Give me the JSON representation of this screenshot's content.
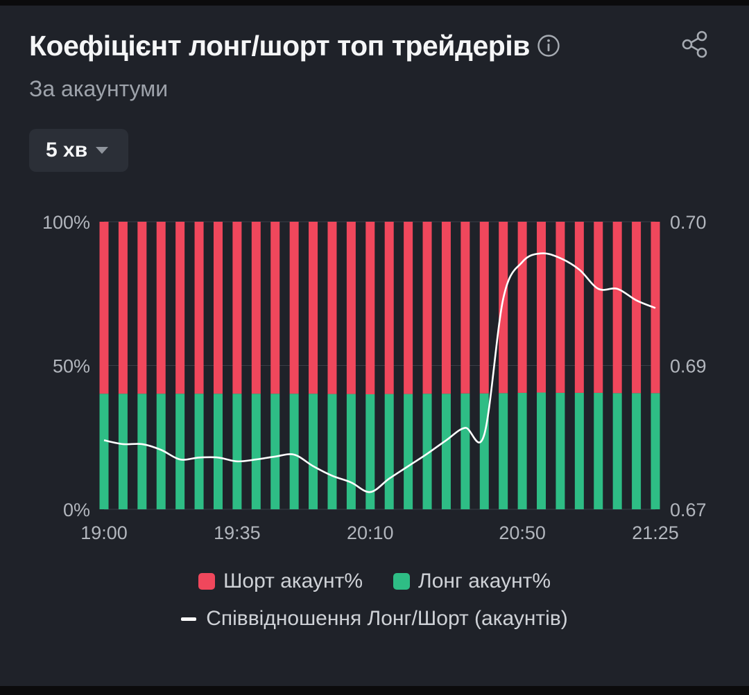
{
  "header": {
    "title": "Коефіцієнт лонг/шорт топ трейдерів",
    "subtitle": "За акаунтуми",
    "info_icon": "info-circle-icon",
    "share_icon": "share-icon"
  },
  "interval": {
    "label": "5 хв",
    "caret_icon": "caret-down-icon"
  },
  "colors": {
    "short": "#f0475c",
    "long": "#2ebd85",
    "ratio": "#ffffff",
    "background": "#1f2229"
  },
  "chart_data": {
    "type": "bar",
    "stacked": true,
    "title": "Коефіцієнт лонг/шорт топ трейдерів",
    "subtitle": "За акаунтуми",
    "x": [
      "19:00",
      "19:05",
      "19:10",
      "19:15",
      "19:20",
      "19:25",
      "19:30",
      "19:35",
      "19:40",
      "19:45",
      "19:50",
      "19:55",
      "20:00",
      "20:05",
      "20:10",
      "20:15",
      "20:20",
      "20:25",
      "20:30",
      "20:35",
      "20:40",
      "20:45",
      "20:50",
      "20:55",
      "21:00",
      "21:05",
      "21:10",
      "21:15",
      "21:20",
      "21:25"
    ],
    "x_ticks": [
      "19:00",
      "19:35",
      "20:10",
      "20:50",
      "21:25"
    ],
    "y_left_ticks": [
      "100%",
      "50%",
      "0%"
    ],
    "y_left_range": [
      0,
      100
    ],
    "y_right_ticks": [
      "0.70",
      "0.69",
      "0.67"
    ],
    "y_right_range": [
      0.67,
      0.7
    ],
    "series": [
      {
        "name": "Шорт акаунт%",
        "axis": "left",
        "values": [
          59.8,
          59.8,
          59.8,
          59.8,
          59.8,
          59.8,
          59.8,
          59.8,
          59.8,
          59.8,
          59.8,
          59.8,
          59.9,
          59.9,
          60.0,
          59.9,
          59.9,
          59.8,
          59.8,
          59.7,
          59.7,
          59.6,
          59.5,
          59.4,
          59.5,
          59.5,
          59.5,
          59.6,
          59.6,
          59.6
        ]
      },
      {
        "name": "Лонг акаунт%",
        "axis": "left",
        "values": [
          40.2,
          40.2,
          40.2,
          40.2,
          40.2,
          40.2,
          40.2,
          40.2,
          40.2,
          40.2,
          40.2,
          40.2,
          40.1,
          40.1,
          40.0,
          40.1,
          40.1,
          40.2,
          40.2,
          40.3,
          40.3,
          40.4,
          40.5,
          40.6,
          40.5,
          40.5,
          40.5,
          40.4,
          40.4,
          40.4
        ]
      },
      {
        "name": "Співвідношення Лонг/Шорт (акаунтів)",
        "axis": "right",
        "type": "line",
        "values": [
          0.6772,
          0.6768,
          0.6768,
          0.6762,
          0.6752,
          0.6754,
          0.6754,
          0.675,
          0.6752,
          0.6755,
          0.6757,
          0.6745,
          0.6735,
          0.6728,
          0.6718,
          0.6732,
          0.6745,
          0.6758,
          0.6772,
          0.6785,
          0.6778,
          0.692,
          0.6958,
          0.6967,
          0.6962,
          0.695,
          0.693,
          0.693,
          0.6918,
          0.691
        ]
      }
    ],
    "grid": true,
    "legend": "bottom"
  }
}
